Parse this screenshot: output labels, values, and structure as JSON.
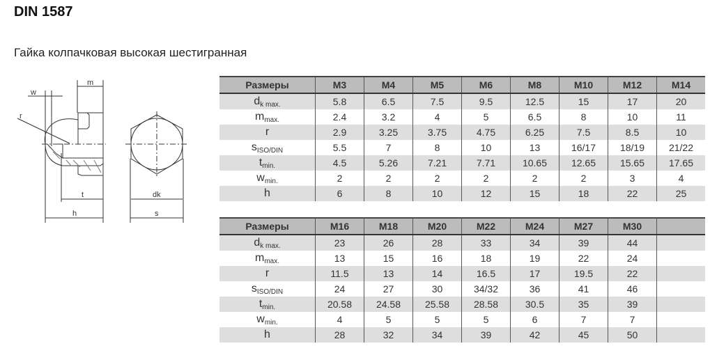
{
  "title": "DIN 1587",
  "subtitle": "Гайка колпачковая высокая шестигранная",
  "drawing_labels": {
    "w": "w",
    "m": "m",
    "r": "r",
    "t": "t",
    "h": "h",
    "dk": "dk",
    "s": "s"
  },
  "row_labels": [
    {
      "sym": "d",
      "sub": "k max."
    },
    {
      "sym": "m",
      "sub": "max."
    },
    {
      "sym": "r",
      "sub": ""
    },
    {
      "sym": "s",
      "sub": "ISO/DIN"
    },
    {
      "sym": "t",
      "sub": "min."
    },
    {
      "sym": "w",
      "sub": "min."
    },
    {
      "sym": "h",
      "sub": ""
    }
  ],
  "tables": [
    {
      "header": "Размеры",
      "sizes": [
        "M3",
        "M4",
        "M5",
        "M6",
        "M8",
        "M10",
        "M12",
        "M14"
      ],
      "rows": [
        [
          "5.8",
          "6.5",
          "7.5",
          "9.5",
          "12.5",
          "15",
          "17",
          "20"
        ],
        [
          "2.4",
          "3.2",
          "4",
          "5",
          "6.5",
          "8",
          "10",
          "11"
        ],
        [
          "2.9",
          "3.25",
          "3.75",
          "4.75",
          "6.25",
          "7.5",
          "8.5",
          "10"
        ],
        [
          "5.5",
          "7",
          "8",
          "10",
          "13",
          "16/17",
          "18/19",
          "21/22"
        ],
        [
          "4.5",
          "5.26",
          "7.21",
          "7.71",
          "10.65",
          "12.65",
          "15.65",
          "17.65"
        ],
        [
          "2",
          "2",
          "2",
          "2",
          "2",
          "2",
          "3",
          "4"
        ],
        [
          "6",
          "8",
          "10",
          "12",
          "15",
          "18",
          "22",
          "25"
        ]
      ]
    },
    {
      "header": "Размеры",
      "sizes": [
        "M16",
        "M18",
        "M20",
        "M22",
        "M24",
        "M27",
        "M30",
        ""
      ],
      "rows": [
        [
          "23",
          "26",
          "28",
          "33",
          "34",
          "39",
          "44",
          ""
        ],
        [
          "13",
          "15",
          "16",
          "18",
          "19",
          "22",
          "24",
          ""
        ],
        [
          "11.5",
          "13",
          "14",
          "16.5",
          "17",
          "19.5",
          "22",
          ""
        ],
        [
          "24",
          "27",
          "30",
          "34/32",
          "36",
          "41",
          "46",
          ""
        ],
        [
          "20.58",
          "24.58",
          "25.58",
          "28.58",
          "30.5",
          "35",
          "39",
          ""
        ],
        [
          "4",
          "5",
          "5",
          "5",
          "6",
          "7",
          "7",
          ""
        ],
        [
          "28",
          "32",
          "34",
          "39",
          "42",
          "45",
          "50",
          ""
        ]
      ]
    }
  ],
  "colors": {
    "header_bg": "#bcbcbc",
    "stripe_bg": "#dedede"
  }
}
